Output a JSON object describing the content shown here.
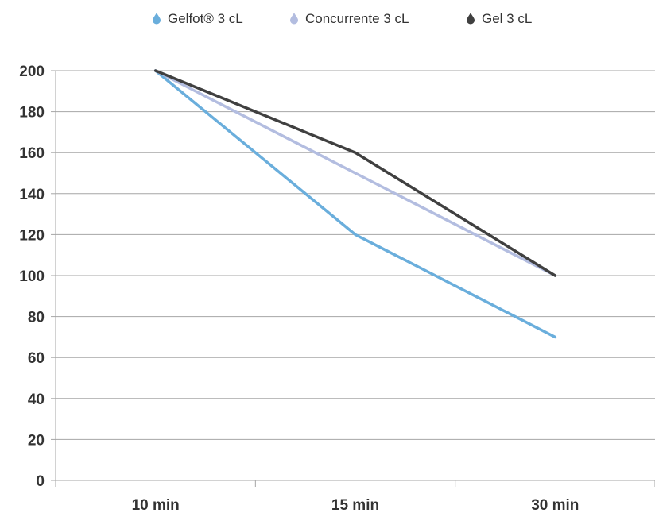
{
  "chart_data": {
    "type": "line",
    "categories": [
      "10 min",
      "15 min",
      "30 min"
    ],
    "series": [
      {
        "name": "Gelfot® 3 cL",
        "values": [
          200,
          120,
          70
        ],
        "color": "#6aaedc"
      },
      {
        "name": "Concurrente 3 cL",
        "values": [
          200,
          150,
          100
        ],
        "color": "#b3bde0"
      },
      {
        "name": "Gel 3 cL",
        "values": [
          200,
          160,
          100
        ],
        "color": "#404040"
      }
    ],
    "ylim": [
      0,
      200
    ],
    "yticks": [
      0,
      20,
      40,
      60,
      80,
      100,
      120,
      140,
      160,
      180,
      200
    ],
    "grid": true,
    "legend_position": "top",
    "legend_icon": "drop-icon",
    "title": "",
    "xlabel": "",
    "ylabel": ""
  }
}
